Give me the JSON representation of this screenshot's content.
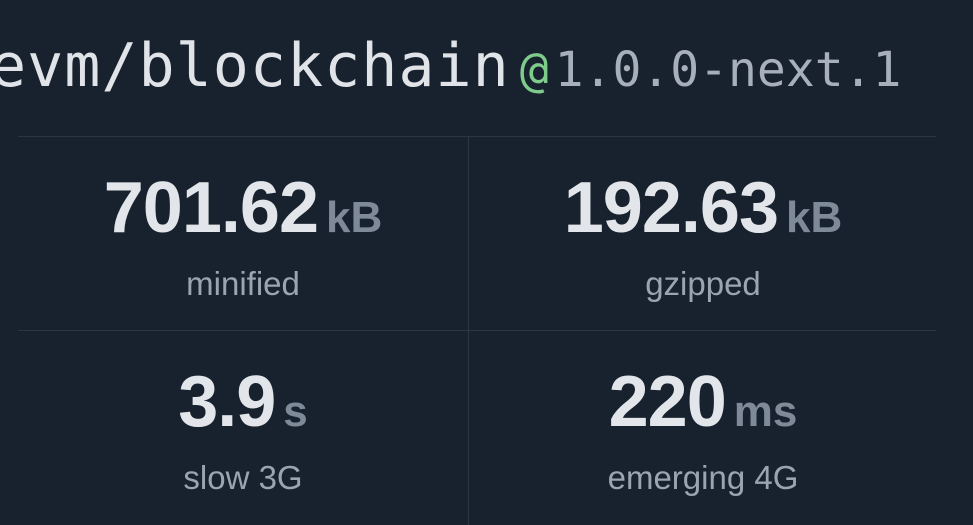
{
  "package": {
    "name": "evm/blockchain",
    "at": "@",
    "version": "1.0.0-next.1"
  },
  "stats": [
    {
      "value": "701.62",
      "unit": "kB",
      "label": "minified"
    },
    {
      "value": "192.63",
      "unit": "kB",
      "label": "gzipped"
    },
    {
      "value": "3.9",
      "unit": "s",
      "label": "slow 3G"
    },
    {
      "value": "220",
      "unit": "ms",
      "label": "emerging 4G"
    }
  ],
  "colors": {
    "background": "#18222e",
    "accent": "#7ecb8c",
    "text": "#e2e6ea",
    "muted": "#9aa5b1"
  }
}
